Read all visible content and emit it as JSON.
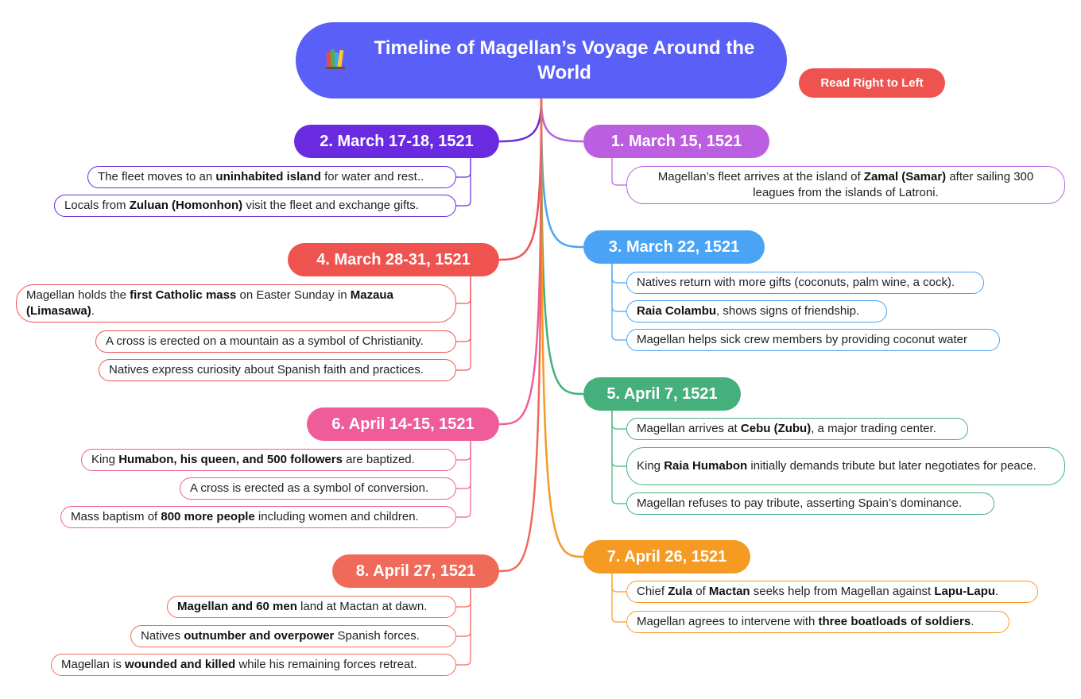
{
  "title": "Timeline of Magellan’s Voyage Around the World",
  "badge": "Read Right to Left",
  "colors": {
    "root": "#5a5ff7",
    "badge": "#ef5350",
    "branch1": "#bb5fe0",
    "branch2": "#6a2be0",
    "branch3": "#4aa3f5",
    "branch4": "#ef5350",
    "branch5": "#45b07c",
    "branch6": "#f05c9a",
    "branch7": "#f59a23",
    "branch8": "#f06a5a"
  },
  "events": [
    {
      "label": "1. March 15,  1521",
      "items": [
        {
          "parts": [
            {
              "t": "Magellan’s fleet arrives at the island of "
            },
            {
              "t": "Zamal (Samar)",
              "b": true
            },
            {
              "t": " after sailing 300 leagues from the islands of Latroni."
            }
          ]
        }
      ]
    },
    {
      "label": "2. March 17-18, 1521",
      "items": [
        {
          "parts": [
            {
              "t": "The fleet moves to an "
            },
            {
              "t": "uninhabited island",
              "b": true
            },
            {
              "t": " for water and rest.."
            }
          ]
        },
        {
          "parts": [
            {
              "t": "Locals from "
            },
            {
              "t": "Zuluan (Homonhon)",
              "b": true
            },
            {
              "t": " visit the fleet and exchange gifts."
            }
          ]
        }
      ]
    },
    {
      "label": "3. March 22, 1521",
      "items": [
        {
          "parts": [
            {
              "t": "Natives return with more gifts (coconuts, palm wine, a cock)."
            }
          ]
        },
        {
          "parts": [
            {
              "t": "Raia Colambu",
              "b": true
            },
            {
              "t": ", shows signs of friendship."
            }
          ]
        },
        {
          "parts": [
            {
              "t": "Magellan helps sick crew members by providing coconut water"
            }
          ]
        }
      ]
    },
    {
      "label": "4.  March 28-31, 1521",
      "items": [
        {
          "parts": [
            {
              "t": "Magellan holds the "
            },
            {
              "t": "first Catholic mass",
              "b": true
            },
            {
              "t": " on Easter Sunday in "
            },
            {
              "t": "Mazaua (Limasawa)",
              "b": true
            },
            {
              "t": "."
            }
          ]
        },
        {
          "parts": [
            {
              "t": "A cross is erected on a mountain as a symbol of Christianity."
            }
          ]
        },
        {
          "parts": [
            {
              "t": "Natives express curiosity about Spanish faith and practices."
            }
          ]
        }
      ]
    },
    {
      "label": "5. April 7, 1521",
      "items": [
        {
          "parts": [
            {
              "t": "Magellan arrives at "
            },
            {
              "t": "Cebu (Zubu)",
              "b": true
            },
            {
              "t": ", a major trading center."
            }
          ]
        },
        {
          "parts": [
            {
              "t": "King "
            },
            {
              "t": "Raia Humabon",
              "b": true
            },
            {
              "t": " initially demands tribute but later negotiates for peace."
            }
          ]
        },
        {
          "parts": [
            {
              "t": "Magellan refuses to pay tribute, asserting Spain’s dominance."
            }
          ]
        }
      ]
    },
    {
      "label": "6. April 14-15, 1521",
      "items": [
        {
          "parts": [
            {
              "t": "King "
            },
            {
              "t": "Humabon, his queen, and 500 followers",
              "b": true
            },
            {
              "t": " are baptized."
            }
          ]
        },
        {
          "parts": [
            {
              "t": "A cross is erected as a symbol of conversion."
            }
          ]
        },
        {
          "parts": [
            {
              "t": "Mass baptism of "
            },
            {
              "t": "800 more people",
              "b": true
            },
            {
              "t": " including women and children."
            }
          ]
        }
      ]
    },
    {
      "label": "7. April 26, 1521",
      "items": [
        {
          "parts": [
            {
              "t": "Chief "
            },
            {
              "t": "Zula",
              "b": true
            },
            {
              "t": " of "
            },
            {
              "t": "Mactan",
              "b": true
            },
            {
              "t": " seeks help from Magellan against "
            },
            {
              "t": "Lapu-Lapu",
              "b": true
            },
            {
              "t": "."
            }
          ]
        },
        {
          "parts": [
            {
              "t": "Magellan agrees to intervene with "
            },
            {
              "t": "three boatloads of soldiers",
              "b": true
            },
            {
              "t": "."
            }
          ]
        }
      ]
    },
    {
      "label": "8. April 27, 1521",
      "items": [
        {
          "parts": [
            {
              "t": "Magellan and 60 men",
              "b": true
            },
            {
              "t": " land at Mactan at dawn."
            }
          ]
        },
        {
          "parts": [
            {
              "t": "Natives "
            },
            {
              "t": "outnumber and overpower",
              "b": true
            },
            {
              "t": " Spanish forces."
            }
          ]
        },
        {
          "parts": [
            {
              "t": "Magellan is "
            },
            {
              "t": "wounded and killed",
              "b": true
            },
            {
              "t": " while his remaining forces retreat."
            }
          ]
        }
      ]
    }
  ]
}
